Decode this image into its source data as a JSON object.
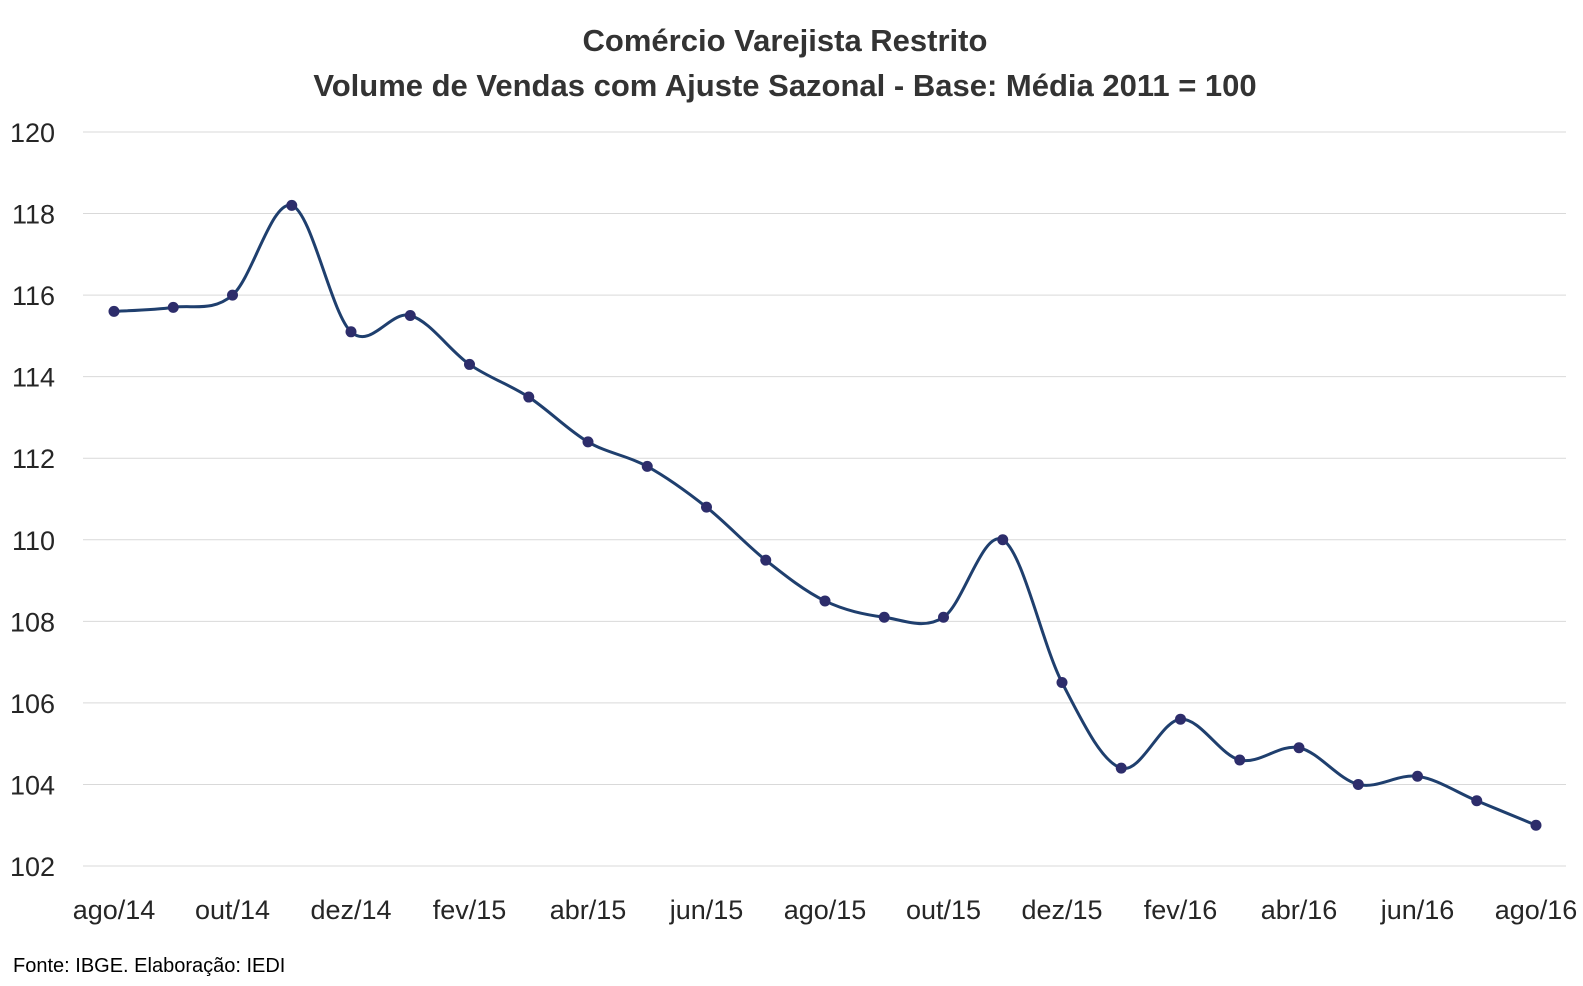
{
  "chart_data": {
    "type": "line",
    "title": "Comércio Varejista Restrito",
    "subtitle": "Volume de Vendas com Ajuste Sazonal - Base: Média 2011 = 100",
    "xlabel": "",
    "ylabel": "",
    "ylim": [
      102,
      120
    ],
    "yticks": [
      102,
      104,
      106,
      108,
      110,
      112,
      114,
      116,
      118,
      120
    ],
    "grid": true,
    "legend": "none",
    "x": [
      "ago/14",
      "set/14",
      "out/14",
      "nov/14",
      "dez/14",
      "jan/15",
      "fev/15",
      "mar/15",
      "abr/15",
      "mai/15",
      "jun/15",
      "jul/15",
      "ago/15",
      "set/15",
      "out/15",
      "nov/15",
      "dez/15",
      "jan/16",
      "fev/16",
      "mar/16",
      "abr/16",
      "mai/16",
      "jun/16",
      "jul/16",
      "ago/16"
    ],
    "xtick_labels": [
      "ago/14",
      "out/14",
      "dez/14",
      "fev/15",
      "abr/15",
      "jun/15",
      "ago/15",
      "out/15",
      "dez/15",
      "fev/16",
      "abr/16",
      "jun/16",
      "ago/16"
    ],
    "series": [
      {
        "color": "#1f3f6e",
        "marker_color": "#2d2d6b",
        "values": [
          115.6,
          115.7,
          116.0,
          118.2,
          115.1,
          115.5,
          114.3,
          113.5,
          112.4,
          111.8,
          110.8,
          109.5,
          108.5,
          108.1,
          108.1,
          110.0,
          106.5,
          104.4,
          105.6,
          104.6,
          104.9,
          104.0,
          104.2,
          103.6,
          103.0
        ]
      }
    ]
  },
  "source_note": "Fonte: IBGE. Elaboração: IEDI"
}
